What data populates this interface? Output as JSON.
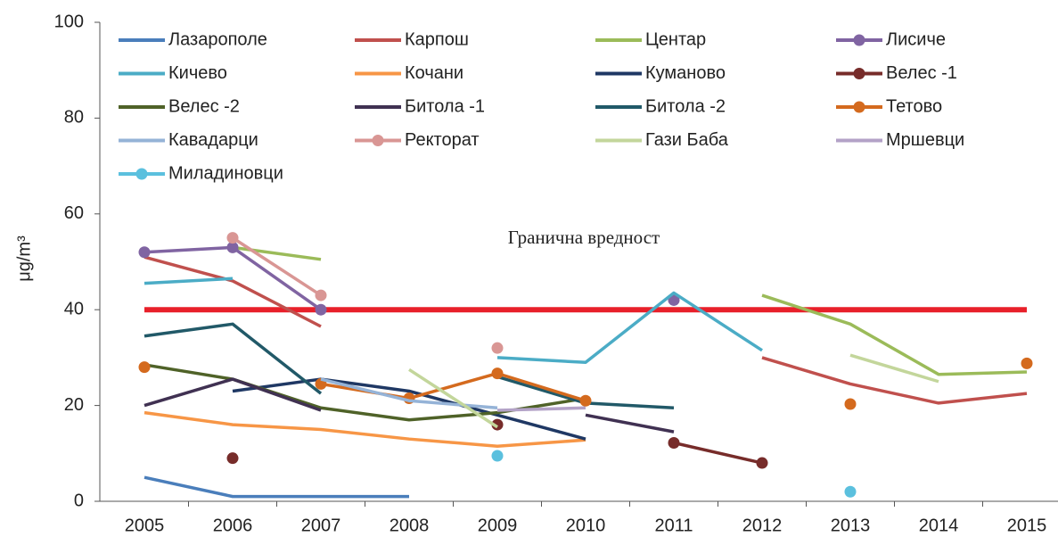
{
  "chart_data": {
    "type": "line",
    "ylabel": "μg/m³",
    "categories": [
      "2005",
      "2006",
      "2007",
      "2008",
      "2009",
      "2010",
      "2011",
      "2012",
      "2013",
      "2014",
      "2015"
    ],
    "ylim": [
      0,
      100
    ],
    "yticks": [
      0,
      20,
      40,
      60,
      80,
      100
    ],
    "threshold": {
      "label": "Гранична вредност",
      "value": 40,
      "color": "#e8202a"
    },
    "series": [
      {
        "name": "Лазарополе",
        "color": "#4a7ebb",
        "marker": false,
        "values": [
          5,
          1,
          1,
          1,
          null,
          null,
          null,
          null,
          null,
          null,
          null
        ]
      },
      {
        "name": "Карпош",
        "color": "#c0504d",
        "marker": false,
        "values": [
          51,
          46,
          36.5,
          null,
          null,
          null,
          null,
          30,
          24.5,
          20.5,
          22.5
        ]
      },
      {
        "name": "Центар",
        "color": "#9bbb59",
        "marker": false,
        "values": [
          null,
          53,
          50.5,
          null,
          null,
          null,
          null,
          43,
          37,
          26.5,
          27
        ]
      },
      {
        "name": "Лисиче",
        "color": "#8064a2",
        "marker": true,
        "values": [
          52,
          53,
          40,
          null,
          null,
          null,
          42,
          null,
          null,
          null,
          null
        ]
      },
      {
        "name": "Кичево",
        "color": "#4bacc6",
        "marker": false,
        "values": [
          45.5,
          46.5,
          null,
          null,
          30,
          29,
          43.5,
          31.5,
          null,
          null,
          null
        ]
      },
      {
        "name": "Кочани",
        "color": "#f79646",
        "marker": false,
        "values": [
          18.5,
          16,
          15,
          13,
          11.5,
          12.8,
          null,
          null,
          null,
          null,
          null
        ]
      },
      {
        "name": "Куманово",
        "color": "#1f3864",
        "marker": false,
        "values": [
          null,
          23,
          25.5,
          23,
          18,
          13,
          null,
          null,
          null,
          null,
          null
        ]
      },
      {
        "name": "Велес -1",
        "color": "#772c2a",
        "marker": true,
        "values": [
          null,
          9,
          null,
          null,
          16,
          null,
          12.2,
          8,
          null,
          null,
          null
        ]
      },
      {
        "name": "Велес -2",
        "color": "#4f6228",
        "marker": false,
        "values": [
          28.5,
          25.5,
          19.5,
          17,
          18.5,
          21.5,
          null,
          null,
          null,
          null,
          null
        ]
      },
      {
        "name": "Битола  -1",
        "color": "#403152",
        "marker": false,
        "values": [
          20,
          25.5,
          19,
          null,
          null,
          18,
          14.5,
          null,
          null,
          null,
          null
        ]
      },
      {
        "name": "Битола  -2",
        "color": "#215968",
        "marker": false,
        "values": [
          34.5,
          37,
          22.5,
          null,
          26,
          20.5,
          19.5,
          null,
          null,
          null,
          null
        ]
      },
      {
        "name": "Тетово",
        "color": "#d46a1e",
        "marker": true,
        "values": [
          28,
          null,
          24.5,
          21.5,
          26.7,
          21,
          null,
          null,
          20.3,
          null,
          28.8
        ]
      },
      {
        "name": "Кавадарци",
        "color": "#95b3d7",
        "marker": false,
        "values": [
          null,
          null,
          25.5,
          21,
          19.5,
          null,
          null,
          null,
          null,
          null,
          null
        ]
      },
      {
        "name": "Ректорат",
        "color": "#d99694",
        "marker": true,
        "values": [
          null,
          55,
          43,
          null,
          32,
          null,
          null,
          null,
          null,
          null,
          null
        ]
      },
      {
        "name": "Гази Баба",
        "color": "#c3d69b",
        "marker": false,
        "values": [
          null,
          null,
          null,
          27.5,
          15.5,
          null,
          null,
          null,
          30.5,
          25,
          null
        ]
      },
      {
        "name": "Мршевци",
        "color": "#b3a2c7",
        "marker": false,
        "values": [
          null,
          null,
          null,
          null,
          19,
          19.5,
          null,
          null,
          null,
          null,
          null
        ]
      },
      {
        "name": "Миладиновци",
        "color": "#5bc0de",
        "marker": true,
        "values": [
          null,
          null,
          null,
          null,
          9.5,
          null,
          null,
          null,
          2,
          null,
          null
        ]
      }
    ]
  }
}
